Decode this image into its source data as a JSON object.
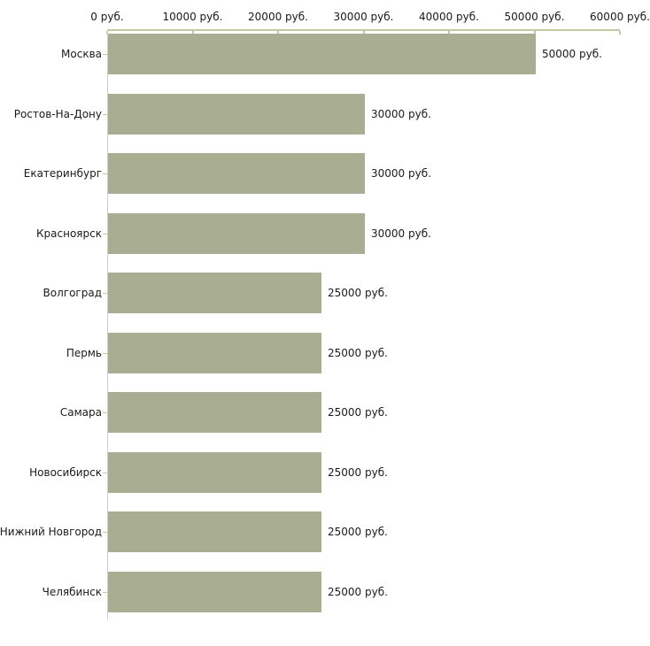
{
  "chart_data": {
    "type": "bar",
    "orientation": "horizontal",
    "title": "",
    "xlabel": "",
    "ylabel": "",
    "xlim": [
      0,
      60000
    ],
    "grid": false,
    "legend": false,
    "unit_suffix": " руб.",
    "x_tick_values": [
      0,
      10000,
      20000,
      30000,
      40000,
      50000,
      60000
    ],
    "x_tick_labels": [
      "0 руб.",
      "10000 руб.",
      "20000 руб.",
      "30000 руб.",
      "40000 руб.",
      "50000 руб.",
      "60000 руб."
    ],
    "categories": [
      "Москва",
      "Ростов-На-Дону",
      "Екатеринбург",
      "Красноярск",
      "Волгоград",
      "Пермь",
      "Самара",
      "Новосибирск",
      "Нижний Новгород",
      "Челябинск"
    ],
    "values": [
      50000,
      30000,
      30000,
      30000,
      25000,
      25000,
      25000,
      25000,
      25000,
      25000
    ],
    "bar_value_labels": [
      "50000 руб.",
      "30000 руб.",
      "30000 руб.",
      "30000 руб.",
      "25000 руб.",
      "25000 руб.",
      "25000 руб.",
      "25000 руб.",
      "25000 руб.",
      "25000 руб."
    ],
    "colors": {
      "bar_fill": "#a9ae93",
      "axis": "#c8c5a3",
      "baseline": "#d0d0cb",
      "text": "#1a1a1a",
      "background": "#ffffff"
    }
  }
}
